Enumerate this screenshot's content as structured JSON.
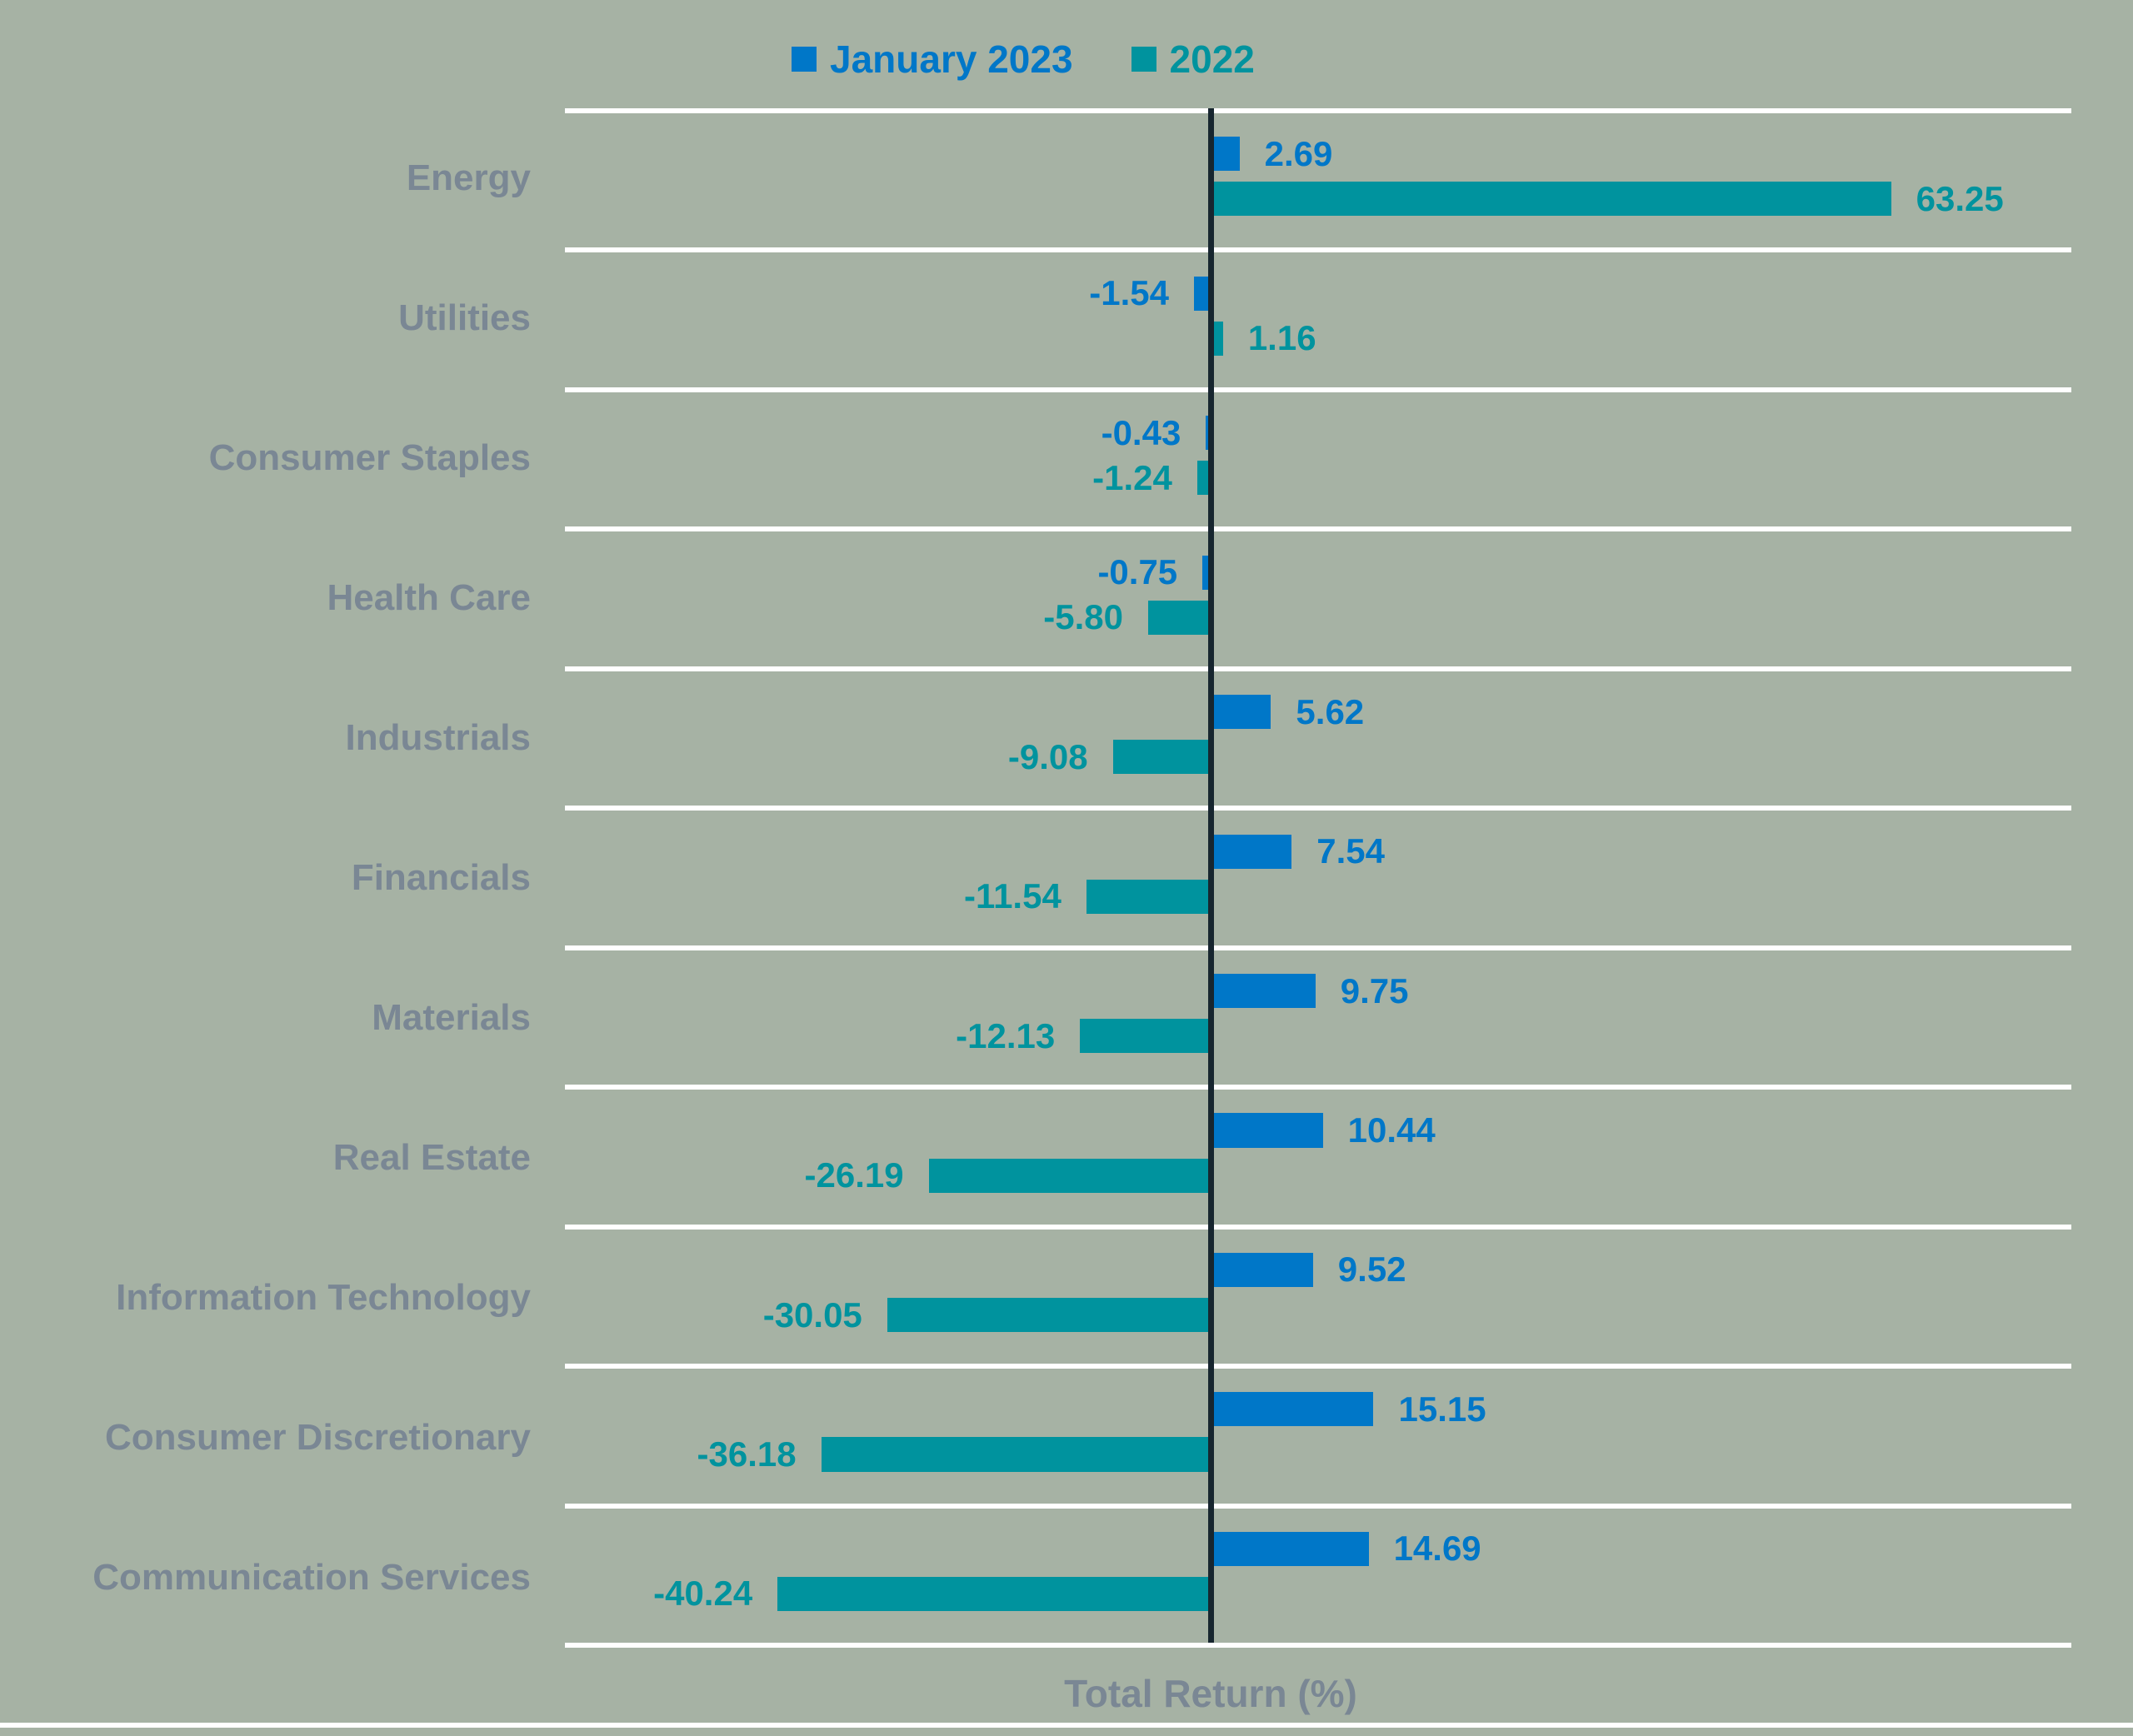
{
  "colors": {
    "background": "#A6B2A4",
    "separator_line": "#FFFFFF",
    "zero_line": "#17262F",
    "category_label": "#7A8794",
    "axis_title": "#7A8794"
  },
  "chart_data": {
    "type": "bar",
    "orientation": "horizontal",
    "title": "",
    "xlabel": "Total Return (%)",
    "ylabel": "",
    "xlim": [
      -60,
      80
    ],
    "legend_position": "top",
    "grid": "white horizontal separator lines between category rows; dark vertical zero line at 0",
    "value_labels": "every bar labeled with its value to two decimals, text colored to match its series",
    "categories": [
      "Energy",
      "Utilities",
      "Consumer Staples",
      "Health Care",
      "Industrials",
      "Financials",
      "Materials",
      "Real Estate",
      "Information Technology",
      "Consumer Discretionary",
      "Communication Services"
    ],
    "series": [
      {
        "name": "January 2023",
        "color": "#0077C8",
        "values": [
          2.69,
          -1.54,
          -0.43,
          -0.75,
          5.62,
          7.54,
          9.75,
          10.44,
          9.52,
          15.15,
          14.69
        ]
      },
      {
        "name": "2022",
        "color": "#00939E",
        "values": [
          63.25,
          1.16,
          -1.24,
          -5.8,
          -9.08,
          -11.54,
          -12.13,
          -26.19,
          -30.05,
          -36.18,
          -40.24
        ]
      }
    ]
  }
}
